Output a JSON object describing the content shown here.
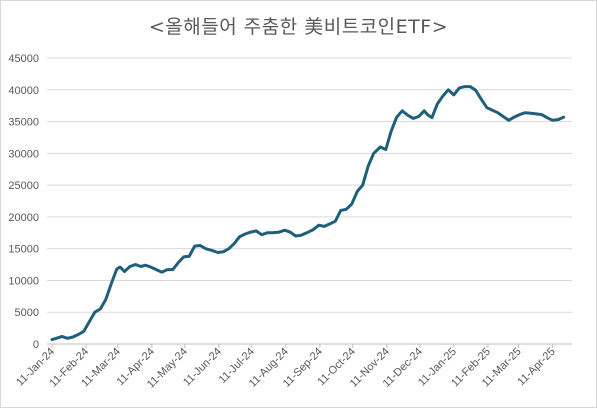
{
  "chart_data": {
    "type": "line",
    "title": "<올해들어 주춤한 美비트코인ETF>",
    "xlabel": "",
    "ylabel": "",
    "ylim": [
      0,
      45000
    ],
    "y_ticks": [
      "0",
      "5000",
      "10000",
      "15000",
      "20000",
      "25000",
      "30000",
      "35000",
      "40000",
      "45000"
    ],
    "x_ticks": [
      "11-Jan-24",
      "11-Feb-24",
      "11-Mar-24",
      "11-Apr-24",
      "11-May-24",
      "11-Jun-24",
      "11-Jul-24",
      "11-Aug-24",
      "11-Sep-24",
      "11-Oct-24",
      "11-Nov-24",
      "11-Dec-24",
      "11-Jan-25",
      "11-Feb-25",
      "11-Mar-25",
      "11-Apr-25"
    ],
    "grid": true,
    "line_color": "#1f5f7a",
    "series": [
      {
        "x": [
          "2024-01-11",
          "2024-01-15",
          "2024-01-20",
          "2024-01-25",
          "2024-01-30",
          "2024-02-04",
          "2024-02-09",
          "2024-02-14",
          "2024-02-19",
          "2024-02-24",
          "2024-02-29",
          "2024-03-05",
          "2024-03-10",
          "2024-03-13",
          "2024-03-17",
          "2024-03-22",
          "2024-03-27",
          "2024-04-01",
          "2024-04-05",
          "2024-04-10",
          "2024-04-15",
          "2024-04-20",
          "2024-04-25",
          "2024-04-30",
          "2024-05-05",
          "2024-05-10",
          "2024-05-15",
          "2024-05-20",
          "2024-05-25",
          "2024-05-30",
          "2024-06-05",
          "2024-06-10",
          "2024-06-15",
          "2024-06-20",
          "2024-06-25",
          "2024-06-30",
          "2024-07-05",
          "2024-07-10",
          "2024-07-15",
          "2024-07-20",
          "2024-07-25",
          "2024-07-30",
          "2024-08-05",
          "2024-08-10",
          "2024-08-15",
          "2024-08-20",
          "2024-08-25",
          "2024-08-30",
          "2024-09-05",
          "2024-09-10",
          "2024-09-15",
          "2024-09-20",
          "2024-09-25",
          "2024-09-30",
          "2024-10-05",
          "2024-10-10",
          "2024-10-15",
          "2024-10-20",
          "2024-10-25",
          "2024-10-30",
          "2024-11-05",
          "2024-11-10",
          "2024-11-15",
          "2024-11-20",
          "2024-11-25",
          "2024-11-30",
          "2024-12-05",
          "2024-12-10",
          "2024-12-15",
          "2024-12-18",
          "2024-12-22",
          "2024-12-27",
          "2025-01-01",
          "2025-01-06",
          "2025-01-11",
          "2025-01-16",
          "2025-01-21",
          "2025-01-26",
          "2025-01-31",
          "2025-02-05",
          "2025-02-10",
          "2025-02-15",
          "2025-02-20",
          "2025-02-25",
          "2025-03-02",
          "2025-03-07",
          "2025-03-12",
          "2025-03-17",
          "2025-03-22",
          "2025-03-27",
          "2025-04-01",
          "2025-04-06",
          "2025-04-11",
          "2025-04-16",
          "2025-04-21"
        ],
        "values": [
          700,
          900,
          1200,
          900,
          1100,
          1500,
          2000,
          3500,
          5000,
          5500,
          7000,
          9500,
          11800,
          12100,
          11400,
          12200,
          12500,
          12200,
          12400,
          12100,
          11700,
          11300,
          11700,
          11700,
          12800,
          13700,
          13800,
          15400,
          15500,
          15000,
          14700,
          14400,
          14500,
          15000,
          15800,
          16900,
          17300,
          17600,
          17800,
          17200,
          17500,
          17500,
          17600,
          17900,
          17600,
          17000,
          17100,
          17500,
          18000,
          18700,
          18500,
          18900,
          19300,
          21000,
          21200,
          22000,
          24000,
          25000,
          28000,
          30000,
          31000,
          30600,
          33500,
          35700,
          36700,
          36000,
          35500,
          35800,
          36700,
          36100,
          35600,
          37800,
          39000,
          40000,
          39200,
          40300,
          40500,
          40500,
          39900,
          38500,
          37200,
          36800,
          36400,
          35800,
          35200,
          35700,
          36100,
          36400,
          36300,
          36200,
          36100,
          35600,
          35200,
          35300,
          35700
        ]
      }
    ]
  }
}
